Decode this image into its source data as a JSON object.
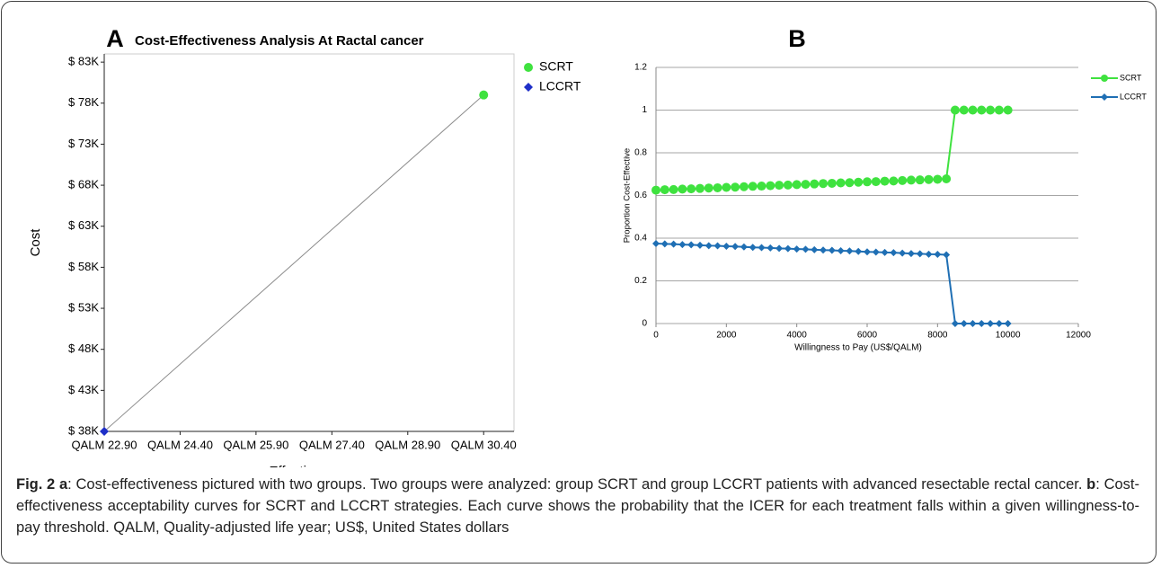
{
  "chart_data": [
    {
      "type": "scatter",
      "panel": "A",
      "title": "Cost-Effectiveness Analysis At Ractal cancer",
      "x_label": "Effectiveness",
      "y_label": "Cost",
      "series": [
        {
          "name": "SCRT",
          "color": "#3fe23f",
          "marker": "circle",
          "x": [
            30.4
          ],
          "values": [
            79000
          ]
        },
        {
          "name": "LCCRT",
          "color": "#1f2fc8",
          "marker": "diamond",
          "x": [
            22.9
          ],
          "values": [
            38000
          ]
        }
      ],
      "connect": true,
      "connect_color": "#8c8c8c",
      "xlim": [
        22.9,
        31.0
      ],
      "xticks": [
        {
          "value": 22.9,
          "label": "QALM 22.90"
        },
        {
          "value": 24.4,
          "label": "QALM 24.40"
        },
        {
          "value": 25.9,
          "label": "QALM 25.90"
        },
        {
          "value": 27.4,
          "label": "QALM 27.40"
        },
        {
          "value": 28.9,
          "label": "QALM 28.90"
        },
        {
          "value": 30.4,
          "label": "QALM 30.40"
        }
      ],
      "ylim": [
        38000,
        84000
      ],
      "yticks": [
        {
          "value": 38000,
          "label": "$ 38K"
        },
        {
          "value": 43000,
          "label": "$ 43K"
        },
        {
          "value": 48000,
          "label": "$ 48K"
        },
        {
          "value": 53000,
          "label": "$ 53K"
        },
        {
          "value": 58000,
          "label": "$ 58K"
        },
        {
          "value": 63000,
          "label": "$ 63K"
        },
        {
          "value": 68000,
          "label": "$ 68K"
        },
        {
          "value": 73000,
          "label": "$ 73K"
        },
        {
          "value": 78000,
          "label": "$ 78K"
        },
        {
          "value": 83000,
          "label": "$ 83K"
        }
      ],
      "grid": false,
      "legend": "right"
    },
    {
      "type": "line",
      "panel": "B",
      "x_label": "Willingness to Pay (US$/QALM)",
      "y_label": "Proportion Cost-Effective",
      "x": [
        0,
        250,
        500,
        750,
        1000,
        1250,
        1500,
        1750,
        2000,
        2250,
        2500,
        2750,
        3000,
        3250,
        3500,
        3750,
        4000,
        4250,
        4500,
        4750,
        5000,
        5250,
        5500,
        5750,
        6000,
        6250,
        6500,
        6750,
        7000,
        7250,
        7500,
        7750,
        8000,
        8250,
        8500,
        8750,
        9000,
        9250,
        9500,
        9750,
        10000
      ],
      "series": [
        {
          "name": "SCRT",
          "color": "#3fe23f",
          "marker": "circle",
          "values": [
            0.625,
            0.627,
            0.628,
            0.63,
            0.631,
            0.633,
            0.635,
            0.636,
            0.638,
            0.639,
            0.641,
            0.643,
            0.644,
            0.646,
            0.648,
            0.649,
            0.651,
            0.652,
            0.654,
            0.656,
            0.657,
            0.659,
            0.66,
            0.662,
            0.664,
            0.665,
            0.667,
            0.668,
            0.67,
            0.672,
            0.673,
            0.675,
            0.676,
            0.678,
            1,
            1,
            1,
            1,
            1,
            1,
            1
          ]
        },
        {
          "name": "LCCRT",
          "color": "#1f6fb4",
          "marker": "diamond",
          "values": [
            0.375,
            0.373,
            0.372,
            0.37,
            0.369,
            0.367,
            0.365,
            0.364,
            0.362,
            0.361,
            0.359,
            0.357,
            0.356,
            0.354,
            0.352,
            0.351,
            0.349,
            0.348,
            0.346,
            0.344,
            0.343,
            0.341,
            0.34,
            0.338,
            0.336,
            0.335,
            0.333,
            0.332,
            0.33,
            0.328,
            0.327,
            0.325,
            0.324,
            0.322,
            0,
            0,
            0,
            0,
            0,
            0,
            0
          ]
        }
      ],
      "xlim": [
        0,
        12000
      ],
      "xticks": [
        0,
        2000,
        4000,
        6000,
        8000,
        10000,
        12000
      ],
      "ylim": [
        0,
        1.2
      ],
      "yticks": [
        0,
        0.2,
        0.4,
        0.6,
        0.8,
        1,
        1.2
      ],
      "grid": true,
      "legend": "right"
    }
  ],
  "caption": {
    "fig": "Fig. 2",
    "a": "a",
    "a_text": ": Cost-effectiveness pictured with two groups. Two groups were analyzed: group SCRT and group LCCRT patients with advanced resectable rectal cancer.",
    "b": "b",
    "b_text": ": Cost-effectiveness acceptability curves for SCRT and LCCRT strategies. Each curve shows the probability that the ICER for each treatment falls within a given willingness-to-pay threshold. QALM, Quality-adjusted life year; US$, United States dollars"
  }
}
